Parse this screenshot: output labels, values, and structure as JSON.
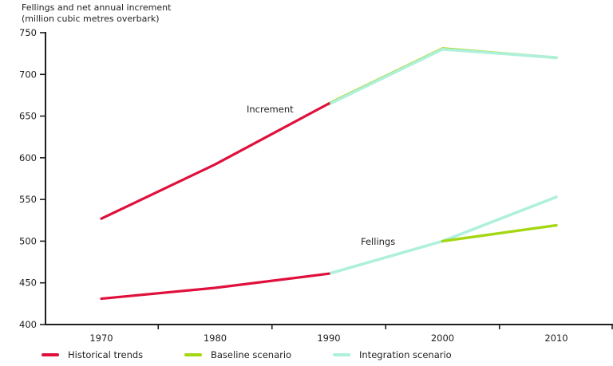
{
  "title": {
    "line1": "Fellings and net annual increment",
    "line2": "(million cubic metres overbark)"
  },
  "annotations": {
    "increment": "Increment",
    "fellings": "Fellings"
  },
  "legend": [
    {
      "label": "Historical trends",
      "color": "#E0103C"
    },
    {
      "label": "Baseline scenario",
      "color": "#A4D712"
    },
    {
      "label": "Integration scenario",
      "color": "#AFF0DC"
    }
  ],
  "colors": {
    "historical": "#E0103C",
    "baseline": "#A4D712",
    "integration": "#AFF0DC",
    "axis": "#1f1f1f"
  },
  "chart_data": {
    "type": "line",
    "title": "Fellings and net annual increment",
    "ylabel": "million cubic metres overbark",
    "xlabel": "",
    "grid": false,
    "legend_position": "bottom",
    "ylim": [
      400,
      750
    ],
    "y_ticks": [
      400,
      450,
      500,
      550,
      600,
      650,
      700,
      750
    ],
    "x_ticks": [
      1970,
      1980,
      1990,
      2000,
      2010
    ],
    "series": [
      {
        "name": "Increment - historical trends",
        "color": "#E0103C",
        "x": [
          1970,
          1980,
          1990
        ],
        "values": [
          527,
          592,
          665
        ]
      },
      {
        "name": "Increment - baseline scenario",
        "color": "#A4D712",
        "x": [
          1990,
          2000,
          2010
        ],
        "values": [
          665,
          731,
          720
        ]
      },
      {
        "name": "Increment - integration scenario",
        "color": "#AFF0DC",
        "x": [
          1990,
          2000,
          2010
        ],
        "values": [
          665,
          731,
          721
        ]
      },
      {
        "name": "Fellings - historical trends",
        "color": "#E0103C",
        "x": [
          1970,
          1980,
          1990
        ],
        "values": [
          431,
          444,
          461
        ]
      },
      {
        "name": "Fellings - integration scenario",
        "color": "#AFF0DC",
        "x": [
          1990,
          2000,
          2010
        ],
        "values": [
          461,
          500,
          553
        ]
      },
      {
        "name": "Fellings - baseline scenario",
        "color": "#A4D712",
        "x": [
          2000,
          2010
        ],
        "values": [
          500,
          519
        ]
      }
    ]
  }
}
